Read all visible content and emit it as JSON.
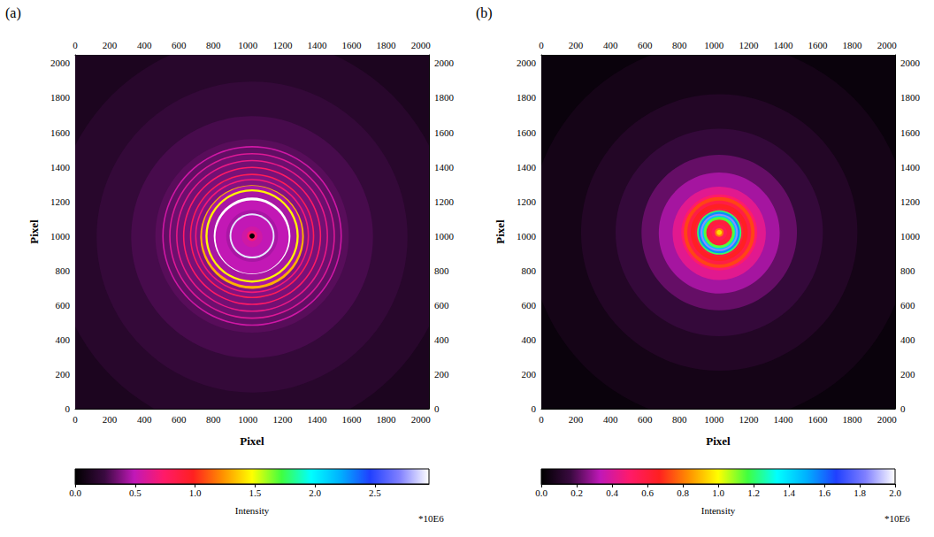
{
  "chart_data": [
    {
      "type": "heatmap",
      "panel": "(a)",
      "xlabel": "Pixel",
      "ylabel": "Pixel",
      "xlim": [
        0,
        2048
      ],
      "ylim": [
        0,
        2048
      ],
      "xticks": [
        0,
        200,
        400,
        600,
        800,
        1000,
        1200,
        1400,
        1600,
        1800,
        2000
      ],
      "yticks": [
        0,
        200,
        400,
        600,
        800,
        1000,
        1200,
        1400,
        1600,
        1800,
        2000
      ],
      "center": [
        1024,
        1000
      ],
      "rings": {
        "radius": [
          1500,
          1150,
          900,
          700,
          560,
          520,
          512,
          480,
          472,
          440,
          432,
          400,
          392,
          360,
          352,
          330,
          322,
          300,
          290,
          270,
          258,
          222,
          212,
          150,
          130,
          120,
          60,
          30,
          15
        ],
        "intensity": [
          0.12,
          0.17,
          0.22,
          0.27,
          0.3,
          0.55,
          0.32,
          0.6,
          0.34,
          0.65,
          0.35,
          0.75,
          0.36,
          0.8,
          0.38,
          0.7,
          0.38,
          1.3,
          0.45,
          1.45,
          0.45,
          2.95,
          0.5,
          0.45,
          2.9,
          0.5,
          0.55,
          0.7,
          0.0
        ]
      },
      "colorbar": {
        "label": "Intensity",
        "multiplier": "*10E6",
        "range": [
          0,
          2.95
        ],
        "ticks": [
          {
            "value": 0,
            "label": "0.0"
          },
          0.5,
          {
            "value": 1,
            "label": "1.0"
          },
          1.5,
          {
            "value": 2,
            "label": "2.0"
          },
          2.5
        ]
      }
    },
    {
      "type": "heatmap",
      "panel": "(b)",
      "xlabel": "Pixel",
      "ylabel": "Pixel",
      "xlim": [
        0,
        2048
      ],
      "ylim": [
        0,
        2048
      ],
      "xticks": [
        0,
        200,
        400,
        600,
        800,
        1000,
        1200,
        1400,
        1600,
        1800,
        2000
      ],
      "yticks": [
        0,
        200,
        400,
        600,
        800,
        1000,
        1200,
        1400,
        1600,
        1800,
        2000
      ],
      "center": [
        1030,
        1020
      ],
      "rings": {
        "radius": [
          1500,
          1100,
          800,
          600,
          450,
          350,
          270,
          220,
          205,
          185,
          165,
          140,
          128,
          120,
          108,
          98,
          90,
          75,
          45,
          25,
          15
        ],
        "intensity": [
          0.03,
          0.06,
          0.1,
          0.15,
          0.22,
          0.3,
          0.42,
          0.5,
          0.72,
          0.58,
          0.66,
          0.6,
          1.2,
          1.55,
          1.85,
          1.45,
          1.15,
          0.6,
          0.55,
          0.8,
          0.95
        ]
      },
      "colorbar": {
        "label": "Intensity",
        "multiplier": "*10E6",
        "range": [
          0,
          2.0
        ],
        "ticks": [
          {
            "value": 0,
            "label": "0.0"
          },
          0.2,
          0.4,
          0.6,
          0.8,
          {
            "value": 1,
            "label": "1.0"
          },
          1.2,
          1.4,
          1.6,
          1.8,
          {
            "value": 2,
            "label": "2.0"
          }
        ]
      }
    }
  ]
}
